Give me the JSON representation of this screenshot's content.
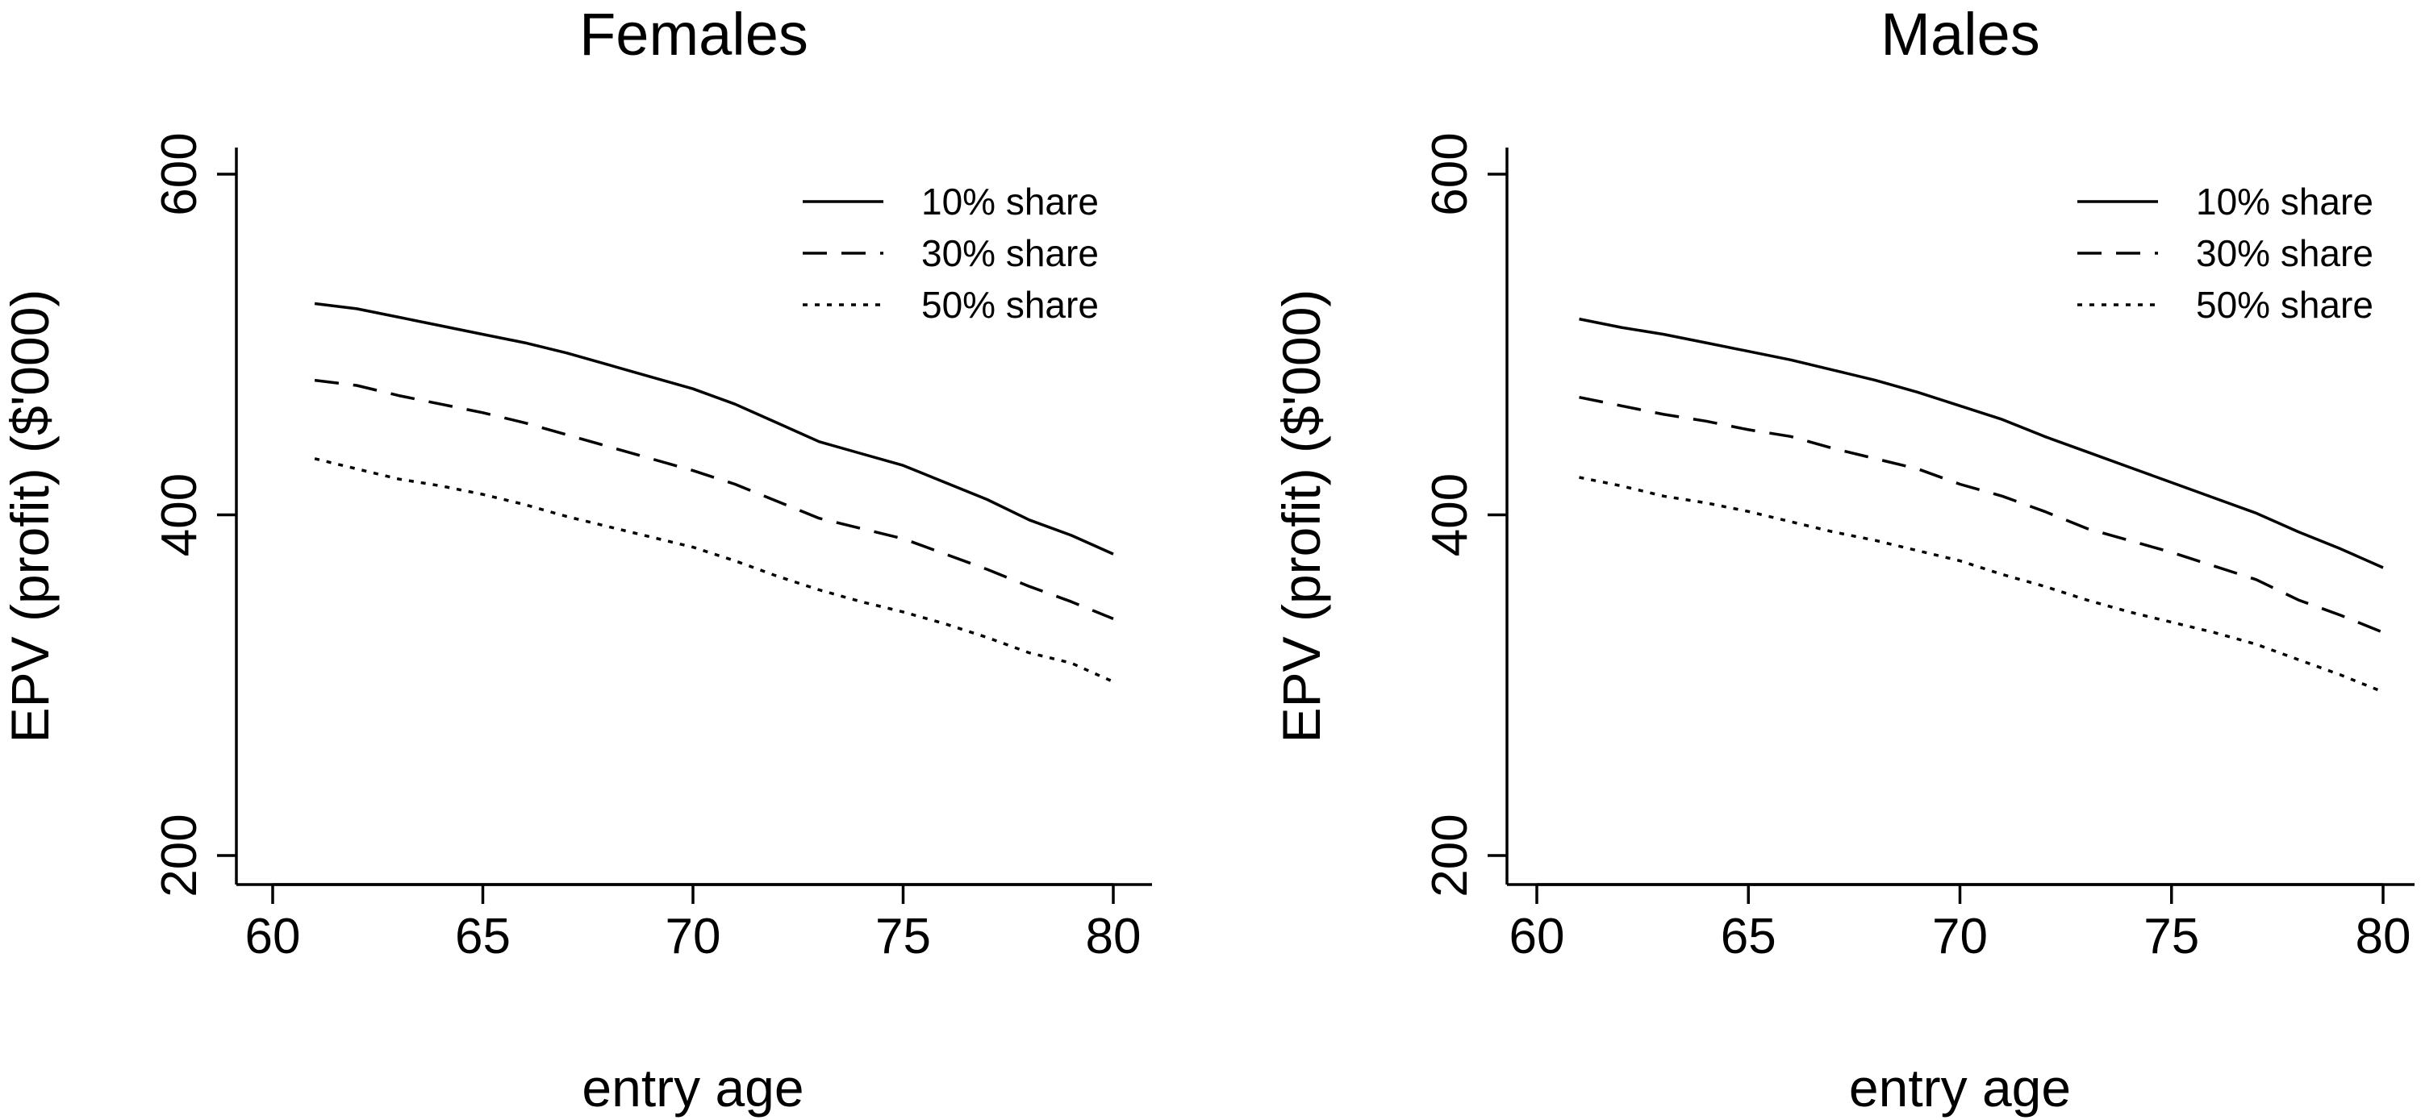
{
  "chart_data": [
    {
      "type": "line",
      "title": "Females",
      "xlabel": "entry age",
      "ylabel": "EPV (profit) ($'000)",
      "xlim": [
        60,
        80
      ],
      "ylim": [
        200,
        600
      ],
      "xticks": [
        60,
        65,
        70,
        75,
        80
      ],
      "yticks": [
        200,
        400,
        600
      ],
      "legend_position": "top-right",
      "x": [
        61,
        62,
        63,
        64,
        65,
        66,
        67,
        68,
        69,
        70,
        71,
        72,
        73,
        74,
        75,
        76,
        77,
        78,
        79,
        80
      ],
      "series": [
        {
          "name": "10% share",
          "dash": "solid",
          "values": [
            524,
            521,
            516,
            511,
            506,
            501,
            495,
            488,
            481,
            474,
            465,
            454,
            443,
            436,
            429,
            419,
            409,
            397,
            388,
            377
          ]
        },
        {
          "name": "30% share",
          "dash": "dashed",
          "values": [
            479,
            476,
            470,
            465,
            460,
            454,
            447,
            440,
            433,
            426,
            418,
            408,
            398,
            392,
            386,
            377,
            368,
            358,
            349,
            339
          ]
        },
        {
          "name": "50% share",
          "dash": "dotted",
          "values": [
            433,
            427,
            421,
            417,
            412,
            406,
            399,
            393,
            387,
            381,
            373,
            364,
            356,
            349,
            343,
            336,
            328,
            319,
            313,
            302
          ]
        }
      ]
    },
    {
      "type": "line",
      "title": "Males",
      "xlabel": "entry age",
      "ylabel": "EPV (profit) ($'000)",
      "xlim": [
        60,
        80
      ],
      "ylim": [
        200,
        600
      ],
      "xticks": [
        60,
        65,
        70,
        75,
        80
      ],
      "yticks": [
        200,
        400,
        600
      ],
      "legend_position": "top-right",
      "x": [
        61,
        62,
        63,
        64,
        65,
        66,
        67,
        68,
        69,
        70,
        71,
        72,
        73,
        74,
        75,
        76,
        77,
        78,
        79,
        80
      ],
      "series": [
        {
          "name": "10% share",
          "dash": "solid",
          "values": [
            515,
            510,
            506,
            501,
            496,
            491,
            485,
            479,
            472,
            464,
            456,
            446,
            437,
            428,
            419,
            410,
            401,
            390,
            380,
            369
          ]
        },
        {
          "name": "30% share",
          "dash": "dashed",
          "values": [
            469,
            464,
            459,
            455,
            450,
            446,
            439,
            433,
            427,
            418,
            411,
            402,
            392,
            385,
            378,
            370,
            362,
            350,
            341,
            331
          ]
        },
        {
          "name": "50% share",
          "dash": "dotted",
          "values": [
            422,
            417,
            411,
            407,
            402,
            396,
            390,
            385,
            379,
            373,
            365,
            358,
            350,
            343,
            337,
            331,
            324,
            315,
            306,
            296
          ]
        }
      ]
    }
  ]
}
